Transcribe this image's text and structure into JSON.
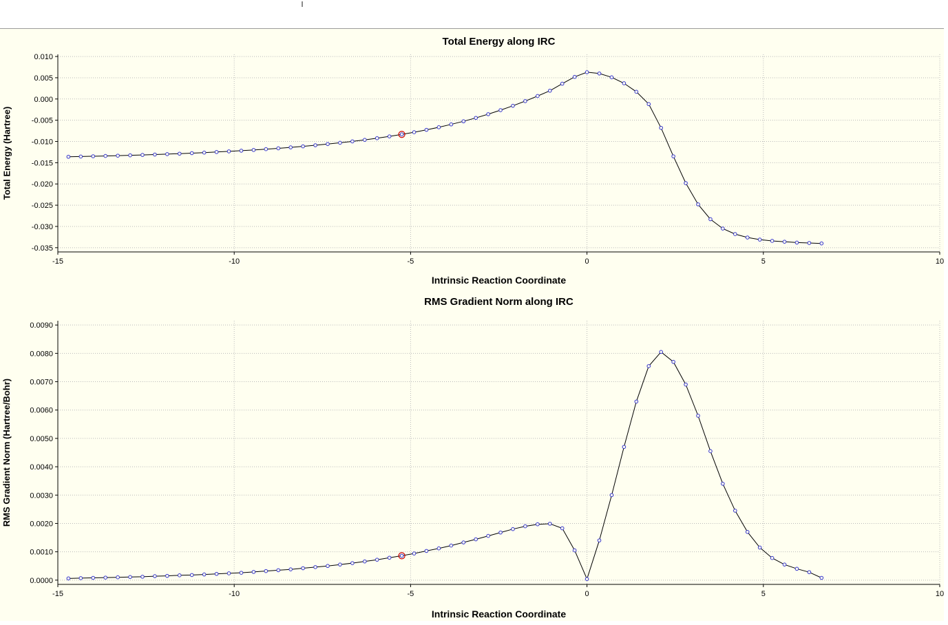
{
  "colors": {
    "panel_background": "#fffff0",
    "grid": "#b9b9b9",
    "axis": "#000000",
    "curve": "#000000",
    "marker": "#3333cc",
    "highlight": "#cc0000"
  },
  "chart_data": [
    {
      "type": "line",
      "title": "Total Energy along IRC",
      "xlabel": "Intrinsic Reaction Coordinate",
      "ylabel": "Total Energy (Hartree)",
      "xlim": [
        -15,
        10
      ],
      "ylim": [
        -0.036,
        0.0105
      ],
      "xticks": [
        -15,
        -10,
        -5,
        0,
        5,
        10
      ],
      "xtick_labels": [
        "-15",
        "-10",
        "-5",
        "0",
        "5",
        "10"
      ],
      "yticks": [
        0.01,
        0.005,
        0.0,
        -0.005,
        -0.01,
        -0.015,
        -0.02,
        -0.025,
        -0.03,
        -0.035
      ],
      "ytick_labels": [
        "0.010",
        "0.005",
        "0.000",
        "-0.005",
        "-0.010",
        "-0.015",
        "-0.020",
        "-0.025",
        "-0.030",
        "-0.035"
      ],
      "grid": true,
      "legend": "none",
      "plot_bg": "#fffff0",
      "grid_color": "#b9b9b9",
      "line_color": "#000000",
      "marker_color": "#3333cc",
      "highlight_color": "#cc0000",
      "highlight_index": 27,
      "points": [
        [
          -14.7,
          -0.0136
        ],
        [
          -14.35,
          -0.01355
        ],
        [
          -14.0,
          -0.01348
        ],
        [
          -13.65,
          -0.01341
        ],
        [
          -13.3,
          -0.01334
        ],
        [
          -12.95,
          -0.01326
        ],
        [
          -12.6,
          -0.01317
        ],
        [
          -12.25,
          -0.01308
        ],
        [
          -11.9,
          -0.01298
        ],
        [
          -11.55,
          -0.01287
        ],
        [
          -11.2,
          -0.01275
        ],
        [
          -10.85,
          -0.01262
        ],
        [
          -10.5,
          -0.01248
        ],
        [
          -10.15,
          -0.01233
        ],
        [
          -9.8,
          -0.01217
        ],
        [
          -9.45,
          -0.012
        ],
        [
          -9.1,
          -0.01181
        ],
        [
          -8.75,
          -0.01161
        ],
        [
          -8.4,
          -0.01139
        ],
        [
          -8.05,
          -0.01115
        ],
        [
          -7.7,
          -0.01089
        ],
        [
          -7.35,
          -0.01061
        ],
        [
          -7.0,
          -0.01031
        ],
        [
          -6.65,
          -0.00998
        ],
        [
          -6.3,
          -0.00962
        ],
        [
          -5.95,
          -0.00923
        ],
        [
          -5.6,
          -0.0088
        ],
        [
          -5.25,
          -0.00833
        ],
        [
          -4.9,
          -0.00782
        ],
        [
          -4.55,
          -0.00726
        ],
        [
          -4.2,
          -0.00665
        ],
        [
          -3.85,
          -0.00598
        ],
        [
          -3.5,
          -0.00525
        ],
        [
          -3.15,
          -0.00445
        ],
        [
          -2.8,
          -0.00358
        ],
        [
          -2.45,
          -0.00263
        ],
        [
          -2.1,
          -0.0016
        ],
        [
          -1.75,
          -0.0005
        ],
        [
          -1.4,
          0.0007
        ],
        [
          -1.05,
          0.00195
        ],
        [
          -0.7,
          0.0036
        ],
        [
          -0.35,
          0.0052
        ],
        [
          0,
          0.0063
        ],
        [
          0.35,
          0.006
        ],
        [
          0.7,
          0.0051
        ],
        [
          1.05,
          0.0037
        ],
        [
          1.4,
          0.0017
        ],
        [
          1.75,
          -0.0012
        ],
        [
          2.1,
          -0.0068
        ],
        [
          2.45,
          -0.0135
        ],
        [
          2.8,
          -0.0198
        ],
        [
          3.15,
          -0.0248
        ],
        [
          3.5,
          -0.0283
        ],
        [
          3.85,
          -0.0305
        ],
        [
          4.2,
          -0.0318
        ],
        [
          4.55,
          -0.0326
        ],
        [
          4.9,
          -0.0331
        ],
        [
          5.25,
          -0.0334
        ],
        [
          5.6,
          -0.0336
        ],
        [
          5.95,
          -0.0338
        ],
        [
          6.3,
          -0.0339
        ],
        [
          6.65,
          -0.034
        ]
      ]
    },
    {
      "type": "line",
      "title": "RMS Gradient Norm along IRC",
      "xlabel": "Intrinsic Reaction Coordinate",
      "ylabel": "RMS Gradient Norm (Hartree/Bohr)",
      "xlim": [
        -15,
        10
      ],
      "ylim": [
        -0.00015,
        0.00915
      ],
      "xticks": [
        -15,
        -10,
        -5,
        0,
        5,
        10
      ],
      "xtick_labels": [
        "-15",
        "-10",
        "-5",
        "0",
        "5",
        "10"
      ],
      "yticks": [
        0.009,
        0.008,
        0.007,
        0.006,
        0.005,
        0.004,
        0.003,
        0.002,
        0.001,
        0.0
      ],
      "ytick_labels": [
        "0.0090",
        "0.0080",
        "0.0070",
        "0.0060",
        "0.0050",
        "0.0040",
        "0.0030",
        "0.0020",
        "0.0010",
        "0.0000"
      ],
      "grid": true,
      "legend": "none",
      "plot_bg": "#fffff0",
      "grid_color": "#b9b9b9",
      "line_color": "#000000",
      "marker_color": "#3333cc",
      "highlight_color": "#cc0000",
      "highlight_index": 27,
      "points": [
        [
          -14.7,
          6e-05
        ],
        [
          -14.35,
          7e-05
        ],
        [
          -14.0,
          8e-05
        ],
        [
          -13.65,
          9e-05
        ],
        [
          -13.3,
          0.0001
        ],
        [
          -12.95,
          0.00011
        ],
        [
          -12.6,
          0.00012
        ],
        [
          -12.25,
          0.00014
        ],
        [
          -11.9,
          0.00015
        ],
        [
          -11.55,
          0.00017
        ],
        [
          -11.2,
          0.00018
        ],
        [
          -10.85,
          0.0002
        ],
        [
          -10.5,
          0.00022
        ],
        [
          -10.15,
          0.00024
        ],
        [
          -9.8,
          0.00026
        ],
        [
          -9.45,
          0.00029
        ],
        [
          -9.1,
          0.00032
        ],
        [
          -8.75,
          0.00035
        ],
        [
          -8.4,
          0.00038
        ],
        [
          -8.05,
          0.00042
        ],
        [
          -7.7,
          0.00046
        ],
        [
          -7.35,
          0.0005
        ],
        [
          -7.0,
          0.00055
        ],
        [
          -6.65,
          0.0006
        ],
        [
          -6.3,
          0.00066
        ],
        [
          -5.95,
          0.00072
        ],
        [
          -5.6,
          0.00079
        ],
        [
          -5.25,
          0.00086
        ],
        [
          -4.9,
          0.00094
        ],
        [
          -4.55,
          0.00103
        ],
        [
          -4.2,
          0.00112
        ],
        [
          -3.85,
          0.00122
        ],
        [
          -3.5,
          0.00133
        ],
        [
          -3.15,
          0.00144
        ],
        [
          -2.8,
          0.00156
        ],
        [
          -2.45,
          0.00168
        ],
        [
          -2.1,
          0.0018
        ],
        [
          -1.75,
          0.0019
        ],
        [
          -1.4,
          0.00197
        ],
        [
          -1.05,
          0.00199
        ],
        [
          -0.7,
          0.00183
        ],
        [
          -0.35,
          0.00105
        ],
        [
          0,
          4e-05
        ],
        [
          0.35,
          0.0014
        ],
        [
          0.7,
          0.003
        ],
        [
          1.05,
          0.0047
        ],
        [
          1.4,
          0.0063
        ],
        [
          1.75,
          0.00755
        ],
        [
          2.1,
          0.00805
        ],
        [
          2.45,
          0.0077
        ],
        [
          2.8,
          0.0069
        ],
        [
          3.15,
          0.0058
        ],
        [
          3.5,
          0.00455
        ],
        [
          3.85,
          0.0034
        ],
        [
          4.2,
          0.00245
        ],
        [
          4.55,
          0.0017
        ],
        [
          4.9,
          0.00115
        ],
        [
          5.25,
          0.00078
        ],
        [
          5.6,
          0.00055
        ],
        [
          5.95,
          0.0004
        ],
        [
          6.3,
          0.00028
        ],
        [
          6.65,
          8e-05
        ]
      ]
    }
  ]
}
